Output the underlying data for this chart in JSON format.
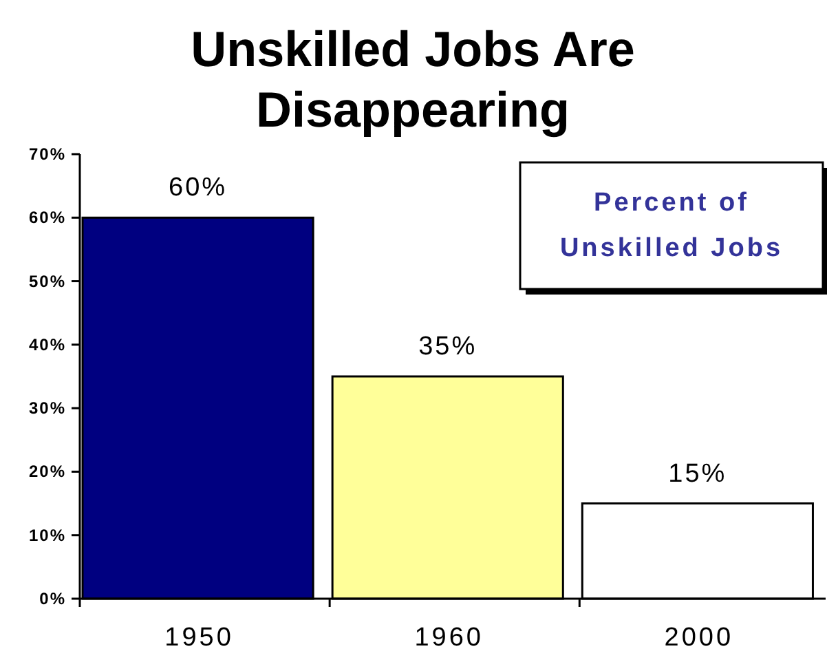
{
  "chart_data": {
    "type": "bar",
    "title": "Unskilled Jobs Are Disappearing",
    "categories": [
      "1950",
      "1960",
      "2000"
    ],
    "values": [
      60,
      35,
      15
    ],
    "colors": [
      "#000080",
      "#ffff99",
      "#ffffff"
    ],
    "value_labels": [
      "60%",
      "35%",
      "15%"
    ],
    "ylim": [
      0,
      70
    ],
    "yticks": [
      {
        "value": 0,
        "label": "0%"
      },
      {
        "value": 10,
        "label": "10%"
      },
      {
        "value": 20,
        "label": "20%"
      },
      {
        "value": 30,
        "label": "30%"
      },
      {
        "value": 40,
        "label": "40%"
      },
      {
        "value": 50,
        "label": "50%"
      },
      {
        "value": 60,
        "label": "60%"
      },
      {
        "value": 70,
        "label": "70%"
      }
    ],
    "annotations": [
      "Percent of Unskilled Jobs"
    ],
    "grid": false
  }
}
